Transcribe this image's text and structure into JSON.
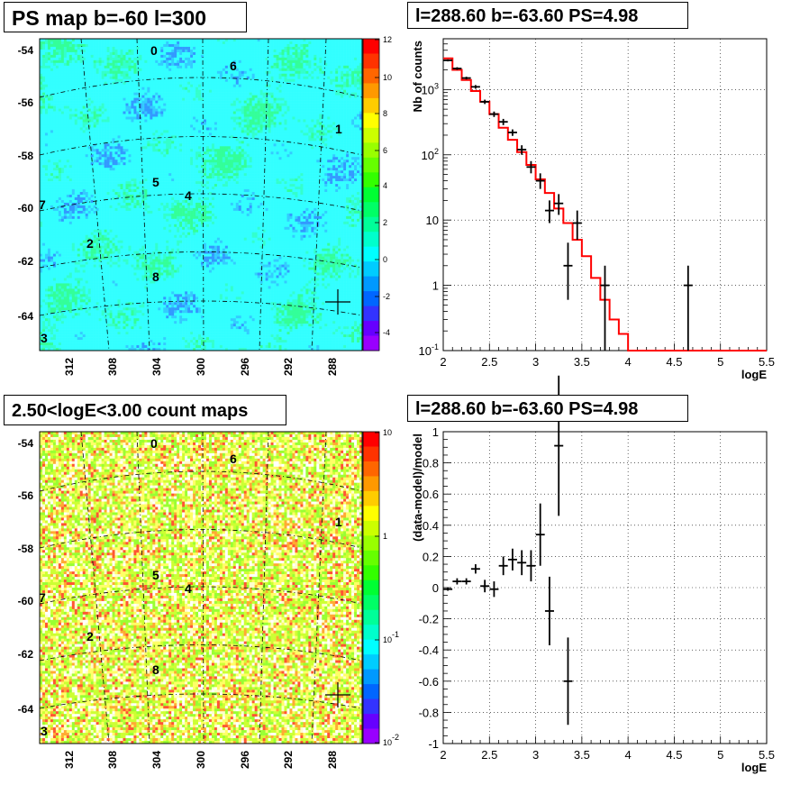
{
  "panels": {
    "map1_title": "PS map b=-60 l=300",
    "spec1_title": "l=288.60 b=-63.60 PS=4.98",
    "map2_title": "2.50<logE<3.00 count maps",
    "spec2_title": "l=288.60 b=-63.60 PS=4.98"
  },
  "chart_data": [
    {
      "type": "heatmap",
      "title": "PS map b=-60 l=300",
      "y_ticks": [
        "-54",
        "-56",
        "-58",
        "-60",
        "-62",
        "-64"
      ],
      "x_ticks": [
        "312",
        "308",
        "304",
        "300",
        "296",
        "292",
        "288"
      ],
      "colorbar_ticks": [
        "12",
        "10",
        "8",
        "6",
        "4",
        "2",
        "0",
        "-2",
        "-4"
      ],
      "colorbar_range": [
        -5,
        12
      ],
      "source_labels": [
        "0",
        "1",
        "2",
        "3",
        "4",
        "5",
        "6",
        "7",
        "8"
      ],
      "marker": {
        "l": 288.6,
        "b": -63.6
      },
      "colors": {
        "background": "#33ffff",
        "green": "#33ff66",
        "blue": "#3399ff"
      }
    },
    {
      "type": "line",
      "title": "l=288.60 b=-63.60 PS=4.98",
      "xlabel": "logE",
      "ylabel": "Nb of counts",
      "xlim": [
        2,
        5.5
      ],
      "ylim": [
        0.1,
        6000
      ],
      "yscale": "log",
      "grid": true,
      "x_ticks": [
        "2",
        "2.5",
        "3",
        "3.5",
        "4",
        "4.5",
        "5",
        "5.5"
      ],
      "y_ticks": [
        "10^3",
        "10^2",
        "10",
        "1",
        "10^-1"
      ],
      "series": [
        {
          "style": "step",
          "color": "#ff0000",
          "edges": [
            2.0,
            2.1,
            2.2,
            2.3,
            2.4,
            2.5,
            2.6,
            2.7,
            2.8,
            2.9,
            3.0,
            3.1,
            3.2,
            3.3,
            3.4,
            3.5,
            3.6,
            3.7,
            3.8,
            3.9,
            4.0,
            5.5
          ],
          "values": [
            3000,
            2000,
            1400,
            950,
            650,
            420,
            260,
            170,
            110,
            70,
            42,
            26,
            15,
            9,
            5,
            2.8,
            1.3,
            0.6,
            0.3,
            0.18,
            0.1
          ]
        },
        {
          "style": "errorbar",
          "color": "#000000",
          "x": [
            2.05,
            2.15,
            2.25,
            2.35,
            2.45,
            2.55,
            2.65,
            2.75,
            2.85,
            2.95,
            3.05,
            3.15,
            3.25,
            3.35,
            3.45,
            3.75,
            4.65
          ],
          "y": [
            2800,
            2100,
            1500,
            1100,
            650,
            420,
            320,
            220,
            120,
            65,
            40,
            14,
            18,
            2,
            9,
            1,
            1
          ],
          "ylow": [
            2700,
            2000,
            1430,
            1030,
            600,
            380,
            285,
            195,
            100,
            52,
            30,
            9,
            12,
            0.6,
            5,
            0.1,
            0.1
          ],
          "yhigh": [
            2900,
            2200,
            1570,
            1170,
            700,
            460,
            355,
            245,
            140,
            80,
            52,
            20,
            25,
            4.5,
            14,
            2,
            2
          ]
        }
      ]
    },
    {
      "type": "heatmap",
      "title": "2.50<logE<3.00 count maps",
      "y_ticks": [
        "-54",
        "-56",
        "-58",
        "-60",
        "-62",
        "-64"
      ],
      "x_ticks": [
        "312",
        "308",
        "304",
        "300",
        "296",
        "292",
        "288"
      ],
      "colorbar_ticks": [
        "10",
        "1",
        "10^-1",
        "10^-2"
      ],
      "colorbar_scale": "log",
      "source_labels": [
        "0",
        "1",
        "2",
        "3",
        "4",
        "5",
        "6",
        "7",
        "8"
      ],
      "marker": {
        "l": 288.6,
        "b": -63.6
      },
      "colors": {
        "white": "#ffffff",
        "yellow": "#ffff66",
        "green": "#99ff33",
        "orange": "#ffaa33",
        "red": "#ff3333"
      }
    },
    {
      "type": "scatter",
      "title": "l=288.60 b=-63.60 PS=4.98",
      "xlabel": "logE",
      "ylabel": "(data-model)/model",
      "xlim": [
        2,
        5.5
      ],
      "ylim": [
        -1,
        1
      ],
      "grid": true,
      "x_ticks": [
        "2",
        "2.5",
        "3",
        "3.5",
        "4",
        "4.5",
        "5",
        "5.5"
      ],
      "y_ticks": [
        "1",
        "0.8",
        "0.6",
        "0.4",
        "0.2",
        "0",
        "-0.2",
        "-0.4",
        "-0.6",
        "-0.8",
        "-1"
      ],
      "series": [
        {
          "style": "errorbar",
          "color": "#000000",
          "x": [
            2.05,
            2.15,
            2.25,
            2.35,
            2.45,
            2.55,
            2.65,
            2.75,
            2.85,
            2.95,
            3.05,
            3.15,
            3.25,
            3.35
          ],
          "y": [
            -0.01,
            0.04,
            0.04,
            0.12,
            0.01,
            -0.01,
            0.14,
            0.18,
            0.16,
            0.14,
            0.34,
            -0.15,
            0.91,
            -0.6
          ],
          "err": [
            0.01,
            0.02,
            0.02,
            0.03,
            0.04,
            0.05,
            0.06,
            0.07,
            0.08,
            0.1,
            0.2,
            0.22,
            0.45,
            0.28
          ]
        }
      ]
    }
  ]
}
